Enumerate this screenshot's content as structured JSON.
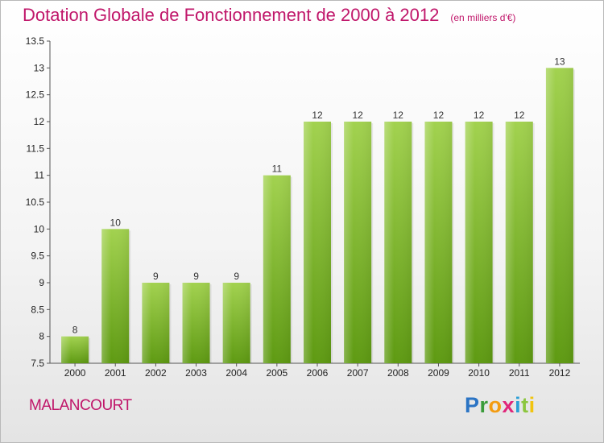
{
  "header": {
    "title": "Dotation Globale de Fonctionnement de 2000 à 2012",
    "subtitle": "(en milliers d'€)"
  },
  "footer": {
    "place": "MALANCOURT",
    "logo_letters": [
      "P",
      "r",
      "o",
      "x",
      "i",
      "t",
      "i"
    ]
  },
  "colors": {
    "bar_top": "#a2d24f",
    "bar_bottom": "#5e9a12",
    "title": "#c0166a"
  },
  "chart_data": {
    "type": "bar",
    "categories": [
      "2000",
      "2001",
      "2002",
      "2003",
      "2004",
      "2005",
      "2006",
      "2007",
      "2008",
      "2009",
      "2010",
      "2011",
      "2012"
    ],
    "values": [
      8,
      10,
      9,
      9,
      9,
      11,
      12,
      12,
      12,
      12,
      12,
      12,
      13
    ],
    "data_labels": [
      "8",
      "10",
      "9",
      "9",
      "9",
      "11",
      "12",
      "12",
      "12",
      "12",
      "12",
      "12",
      "13"
    ],
    "title": "Dotation Globale de Fonctionnement de 2000 à 2012",
    "subtitle": "(en milliers d'€)",
    "xlabel": "",
    "ylabel": "",
    "ylim": [
      7.5,
      13.5
    ],
    "yticks": [
      "7.5",
      "8",
      "8.5",
      "9",
      "9.5",
      "10",
      "10.5",
      "11",
      "11.5",
      "12",
      "12.5",
      "13",
      "13.5"
    ],
    "grid": false
  }
}
